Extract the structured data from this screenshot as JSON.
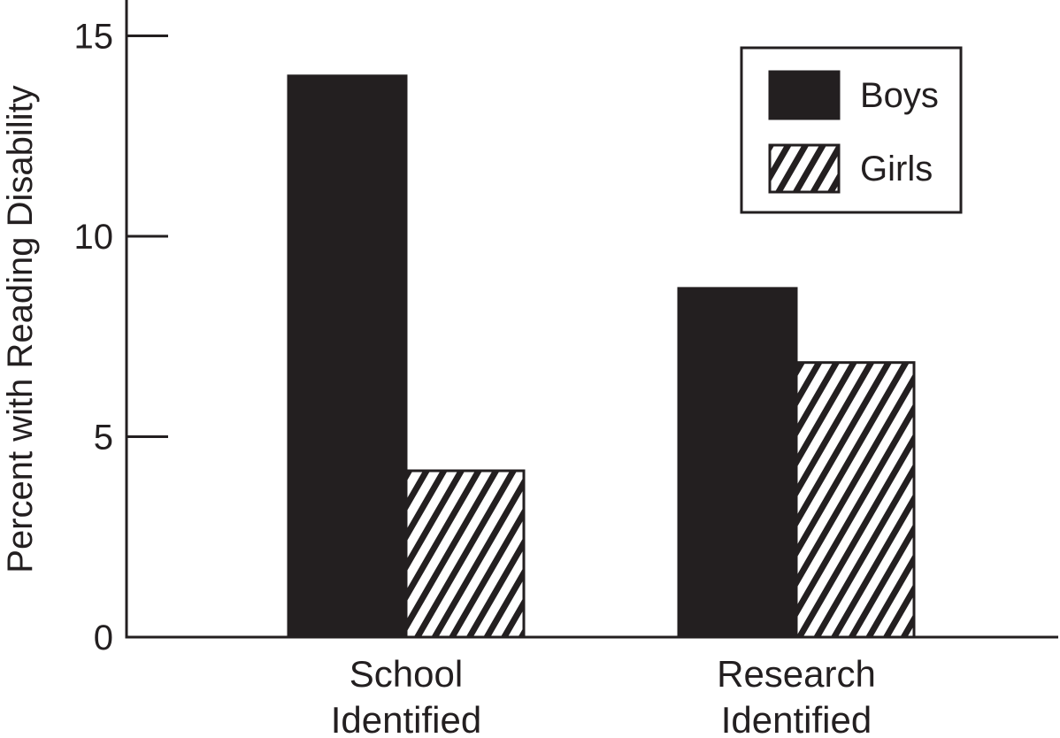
{
  "chart_data": {
    "type": "bar",
    "title": "",
    "xlabel": "",
    "ylabel": "Percent with Reading Disability",
    "ylim": [
      0,
      15
    ],
    "yticks": [
      0,
      5,
      10,
      15
    ],
    "categories": [
      [
        "School",
        "Identified"
      ],
      [
        "Research",
        "Identified"
      ]
    ],
    "series": [
      {
        "name": "Boys",
        "fill": "solid",
        "values": [
          14.0,
          8.7
        ]
      },
      {
        "name": "Girls",
        "fill": "hatched",
        "values": [
          4.15,
          6.85
        ]
      }
    ],
    "legend": {
      "placement": "top-right",
      "entries": [
        "Boys",
        "Girls"
      ]
    },
    "grid": false
  },
  "colors": {
    "bar_dark": "#231f20",
    "ink": "#231f20",
    "background": "#ffffff"
  }
}
